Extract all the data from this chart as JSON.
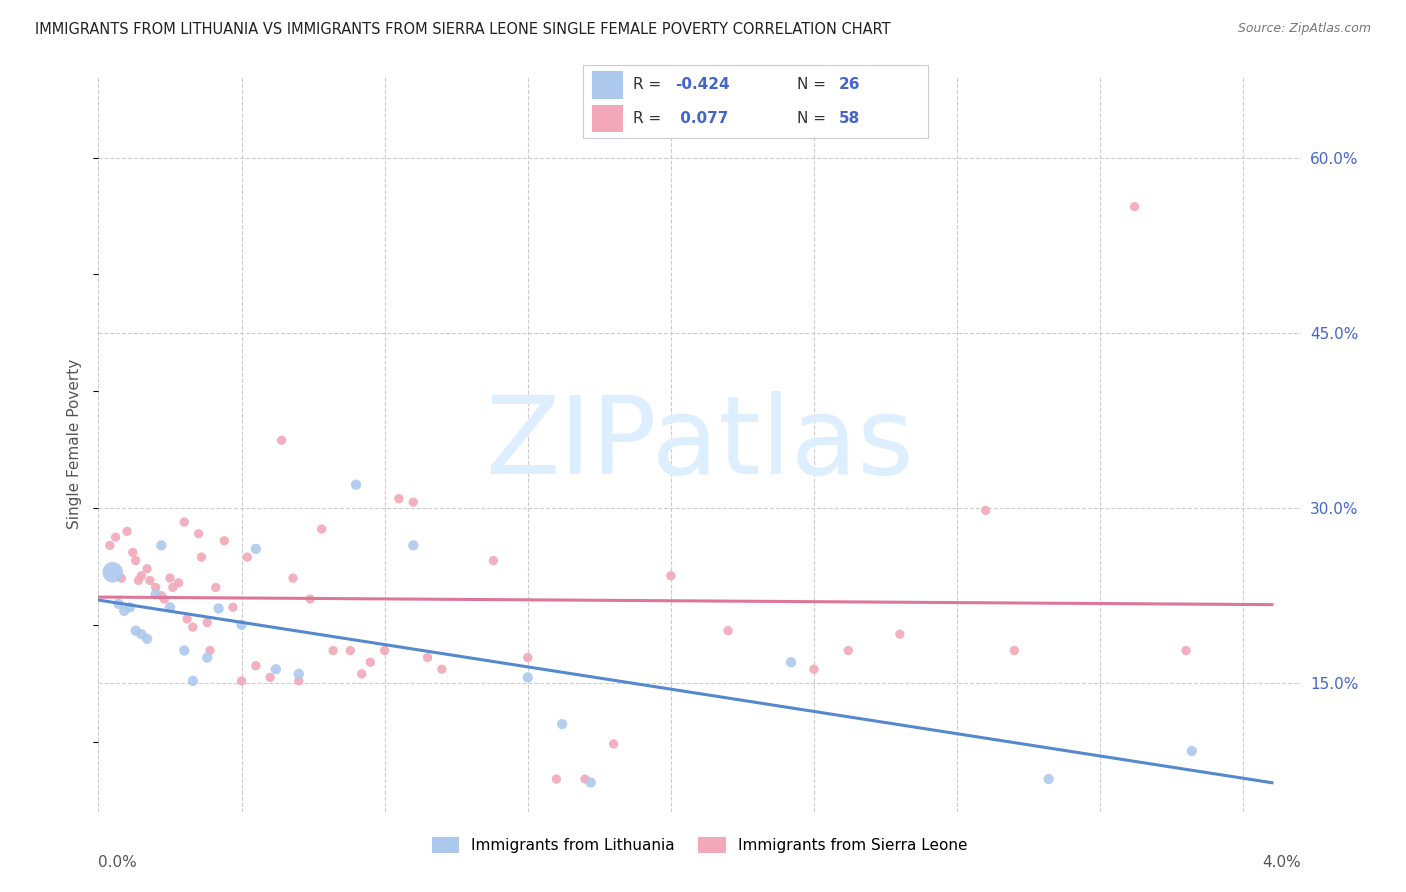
{
  "title": "IMMIGRANTS FROM LITHUANIA VS IMMIGRANTS FROM SIERRA LEONE SINGLE FEMALE POVERTY CORRELATION CHART",
  "source": "Source: ZipAtlas.com",
  "ylabel": "Single Female Poverty",
  "xlim": [
    0.0,
    4.2
  ],
  "ylim": [
    0.04,
    0.67
  ],
  "y_ticks": [
    0.15,
    0.3,
    0.45,
    0.6
  ],
  "x_grid_vals": [
    0.0,
    0.5,
    1.0,
    1.5,
    2.0,
    2.5,
    3.0,
    3.5,
    4.0
  ],
  "color_blue": "#adc8ed",
  "color_pink": "#f2a8b8",
  "color_blue_line": "#5588cc",
  "color_pink_line": "#dd7799",
  "color_blue_text": "#4466cc",
  "color_dark_text": "#333333",
  "watermark": "ZIPatlas",
  "watermark_color": "#ddeeff",
  "grid_color": "#cccccc",
  "background_color": "#ffffff",
  "lithuania_x": [
    0.05,
    0.07,
    0.09,
    0.11,
    0.13,
    0.15,
    0.17,
    0.2,
    0.22,
    0.25,
    0.3,
    0.33,
    0.38,
    0.42,
    0.5,
    0.55,
    0.62,
    0.7,
    0.9,
    1.1,
    1.5,
    1.62,
    1.72,
    2.42,
    3.32,
    3.82
  ],
  "lithuania_y": [
    0.245,
    0.218,
    0.212,
    0.215,
    0.195,
    0.192,
    0.188,
    0.226,
    0.268,
    0.215,
    0.178,
    0.152,
    0.172,
    0.214,
    0.2,
    0.265,
    0.162,
    0.158,
    0.32,
    0.268,
    0.155,
    0.115,
    0.065,
    0.168,
    0.068,
    0.092
  ],
  "sierraleone_x": [
    0.04,
    0.06,
    0.08,
    0.1,
    0.12,
    0.13,
    0.14,
    0.15,
    0.17,
    0.18,
    0.2,
    0.22,
    0.23,
    0.25,
    0.26,
    0.28,
    0.3,
    0.31,
    0.33,
    0.35,
    0.36,
    0.38,
    0.39,
    0.41,
    0.44,
    0.47,
    0.5,
    0.52,
    0.55,
    0.6,
    0.64,
    0.68,
    0.7,
    0.74,
    0.78,
    0.82,
    0.88,
    0.92,
    0.95,
    1.0,
    1.05,
    1.1,
    1.15,
    1.2,
    1.38,
    1.5,
    1.6,
    1.7,
    1.8,
    2.0,
    2.2,
    2.5,
    2.62,
    2.8,
    3.1,
    3.2,
    3.62,
    3.8
  ],
  "sierraleone_y": [
    0.268,
    0.275,
    0.24,
    0.28,
    0.262,
    0.255,
    0.238,
    0.242,
    0.248,
    0.238,
    0.232,
    0.225,
    0.222,
    0.24,
    0.232,
    0.236,
    0.288,
    0.205,
    0.198,
    0.278,
    0.258,
    0.202,
    0.178,
    0.232,
    0.272,
    0.215,
    0.152,
    0.258,
    0.165,
    0.155,
    0.358,
    0.24,
    0.152,
    0.222,
    0.282,
    0.178,
    0.178,
    0.158,
    0.168,
    0.178,
    0.308,
    0.305,
    0.172,
    0.162,
    0.255,
    0.172,
    0.068,
    0.068,
    0.098,
    0.242,
    0.195,
    0.162,
    0.178,
    0.192,
    0.298,
    0.178,
    0.558,
    0.178
  ],
  "dot_size_lithuania": 55,
  "dot_size_sierraleone": 45,
  "large_dot_size": 220
}
